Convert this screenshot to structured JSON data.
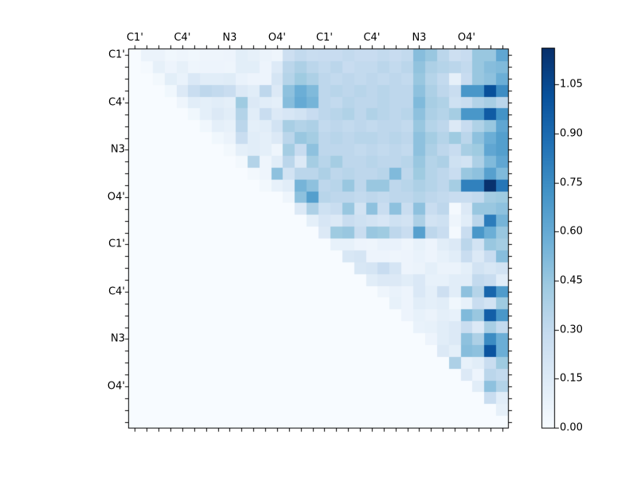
{
  "chart_data": {
    "type": "heatmap",
    "title": "",
    "description": "Upper-triangular 32x32 matrix heatmap with Blues colormap and vertical colorbar",
    "n_rows": 32,
    "n_cols": 32,
    "x_ticks": [
      {
        "pos": 0,
        "label": "C1'"
      },
      {
        "pos": 4,
        "label": "C4'"
      },
      {
        "pos": 8,
        "label": "N3"
      },
      {
        "pos": 12,
        "label": "O4'"
      },
      {
        "pos": 16,
        "label": "C1'"
      },
      {
        "pos": 20,
        "label": "C4'"
      },
      {
        "pos": 24,
        "label": "N3"
      },
      {
        "pos": 28,
        "label": "O4'"
      }
    ],
    "y_ticks": [
      {
        "pos": 0,
        "label": "C1'"
      },
      {
        "pos": 4,
        "label": "C4'"
      },
      {
        "pos": 8,
        "label": "N3"
      },
      {
        "pos": 12,
        "label": "O4'"
      },
      {
        "pos": 16,
        "label": "C1'"
      },
      {
        "pos": 20,
        "label": "C4'"
      },
      {
        "pos": 24,
        "label": "N3"
      },
      {
        "pos": 28,
        "label": "O4'"
      }
    ],
    "vmin": 0.0,
    "vmax": 1.16,
    "colormap_name": "Blues",
    "colormap": [
      {
        "t": 0.0,
        "color": "#f7fbff"
      },
      {
        "t": 0.125,
        "color": "#deebf7"
      },
      {
        "t": 0.25,
        "color": "#c6dbef"
      },
      {
        "t": 0.375,
        "color": "#9ecae1"
      },
      {
        "t": 0.5,
        "color": "#6baed6"
      },
      {
        "t": 0.625,
        "color": "#4292c6"
      },
      {
        "t": 0.75,
        "color": "#2171b5"
      },
      {
        "t": 0.875,
        "color": "#08519c"
      },
      {
        "t": 1.0,
        "color": "#08306b"
      }
    ],
    "colorbar": {
      "tick_values": [
        0.0,
        0.15,
        0.3,
        0.45,
        0.6,
        0.75,
        0.9,
        1.05
      ],
      "tick_labels": [
        "0.00",
        "0.15",
        "0.30",
        "0.45",
        "0.60",
        "0.75",
        "0.90",
        "1.05"
      ]
    },
    "matrix": [
      [
        0,
        0.07,
        0.07,
        0.04,
        0.05,
        0.04,
        0.05,
        0.05,
        0.06,
        0.12,
        0.1,
        0.07,
        0.05,
        0.25,
        0.3,
        0.27,
        0.28,
        0.28,
        0.3,
        0.28,
        0.28,
        0.3,
        0.28,
        0.3,
        0.5,
        0.45,
        0.33,
        0.25,
        0.28,
        0.45,
        0.45,
        0.62
      ],
      [
        0,
        0.02,
        0.1,
        0.06,
        0.1,
        0.05,
        0.06,
        0.06,
        0.05,
        0.12,
        0.12,
        0.06,
        0.15,
        0.33,
        0.38,
        0.33,
        0.3,
        0.33,
        0.28,
        0.3,
        0.3,
        0.33,
        0.3,
        0.33,
        0.47,
        0.38,
        0.35,
        0.33,
        0.3,
        0.45,
        0.5,
        0.52
      ],
      [
        0,
        0,
        0.03,
        0.12,
        0.08,
        0.17,
        0.13,
        0.13,
        0.14,
        0.08,
        0.06,
        0.06,
        0.2,
        0.35,
        0.43,
        0.38,
        0.32,
        0.3,
        0.32,
        0.3,
        0.32,
        0.3,
        0.32,
        0.3,
        0.45,
        0.35,
        0.3,
        0.1,
        0.28,
        0.45,
        0.48,
        0.58
      ],
      [
        0,
        0,
        0,
        0.04,
        0.16,
        0.27,
        0.32,
        0.3,
        0.27,
        0.16,
        0.13,
        0.32,
        0.16,
        0.48,
        0.58,
        0.52,
        0.32,
        0.34,
        0.32,
        0.34,
        0.32,
        0.34,
        0.32,
        0.32,
        0.48,
        0.38,
        0.32,
        0.27,
        0.7,
        0.7,
        1.02,
        0.75
      ],
      [
        0,
        0,
        0,
        0,
        0.05,
        0.13,
        0.11,
        0.13,
        0.11,
        0.43,
        0.16,
        0.13,
        0.11,
        0.5,
        0.6,
        0.55,
        0.32,
        0.3,
        0.34,
        0.32,
        0.32,
        0.34,
        0.32,
        0.32,
        0.52,
        0.4,
        0.37,
        0.24,
        0.27,
        0.36,
        0.4,
        0.33
      ],
      [
        0,
        0,
        0,
        0,
        0,
        0.04,
        0.11,
        0.16,
        0.13,
        0.36,
        0.13,
        0.27,
        0.16,
        0.19,
        0.22,
        0.28,
        0.32,
        0.34,
        0.37,
        0.32,
        0.37,
        0.34,
        0.32,
        0.34,
        0.48,
        0.38,
        0.35,
        0.41,
        0.7,
        0.7,
        0.97,
        0.72
      ],
      [
        0,
        0,
        0,
        0,
        0,
        0,
        0.04,
        0.11,
        0.09,
        0.33,
        0.11,
        0.13,
        0.22,
        0.4,
        0.36,
        0.38,
        0.3,
        0.32,
        0.3,
        0.32,
        0.3,
        0.32,
        0.32,
        0.3,
        0.45,
        0.35,
        0.32,
        0.16,
        0.28,
        0.37,
        0.45,
        0.62
      ],
      [
        0,
        0,
        0,
        0,
        0,
        0,
        0,
        0.04,
        0.07,
        0.27,
        0.13,
        0.11,
        0.16,
        0.33,
        0.45,
        0.41,
        0.32,
        0.34,
        0.32,
        0.34,
        0.34,
        0.32,
        0.34,
        0.32,
        0.48,
        0.41,
        0.35,
        0.43,
        0.33,
        0.48,
        0.58,
        0.66
      ],
      [
        0,
        0,
        0,
        0,
        0,
        0,
        0,
        0,
        0.03,
        0.11,
        0.13,
        0.11,
        0.05,
        0.41,
        0.28,
        0.48,
        0.32,
        0.32,
        0.32,
        0.3,
        0.32,
        0.3,
        0.32,
        0.3,
        0.48,
        0.38,
        0.32,
        0.28,
        0.4,
        0.43,
        0.62,
        0.66
      ],
      [
        0,
        0,
        0,
        0,
        0,
        0,
        0,
        0,
        0,
        0.03,
        0.36,
        0.05,
        0.13,
        0.33,
        0.16,
        0.41,
        0.34,
        0.41,
        0.32,
        0.32,
        0.34,
        0.32,
        0.32,
        0.34,
        0.45,
        0.35,
        0.38,
        0.24,
        0.22,
        0.38,
        0.52,
        0.62
      ],
      [
        0,
        0,
        0,
        0,
        0,
        0,
        0,
        0,
        0,
        0,
        0.03,
        0.05,
        0.48,
        0.22,
        0.33,
        0.33,
        0.38,
        0.32,
        0.34,
        0.32,
        0.32,
        0.34,
        0.52,
        0.32,
        0.43,
        0.35,
        0.32,
        0.27,
        0.45,
        0.48,
        0.65,
        0.52
      ],
      [
        0,
        0,
        0,
        0,
        0,
        0,
        0,
        0,
        0,
        0,
        0,
        0.03,
        0.09,
        0.13,
        0.55,
        0.48,
        0.32,
        0.34,
        0.45,
        0.32,
        0.45,
        0.45,
        0.32,
        0.34,
        0.38,
        0.35,
        0.32,
        0.41,
        0.8,
        0.8,
        1.15,
        0.85
      ],
      [
        0,
        0,
        0,
        0,
        0,
        0,
        0,
        0,
        0,
        0,
        0,
        0,
        0,
        0.05,
        0.48,
        0.66,
        0.34,
        0.32,
        0.32,
        0.3,
        0.32,
        0.3,
        0.32,
        0.32,
        0.35,
        0.32,
        0.3,
        0.27,
        0.27,
        0.3,
        0.41,
        0.43
      ],
      [
        0,
        0,
        0,
        0,
        0,
        0,
        0,
        0,
        0,
        0,
        0,
        0,
        0,
        0,
        0.16,
        0.38,
        0.24,
        0.27,
        0.45,
        0.22,
        0.48,
        0.27,
        0.48,
        0.27,
        0.48,
        0.27,
        0.32,
        0.02,
        0.16,
        0.45,
        0.45,
        0.48
      ],
      [
        0,
        0,
        0,
        0,
        0,
        0,
        0,
        0,
        0,
        0,
        0,
        0,
        0,
        0,
        0,
        0.11,
        0.19,
        0.16,
        0.27,
        0.24,
        0.22,
        0.19,
        0.24,
        0.22,
        0.38,
        0.22,
        0.24,
        0.05,
        0.13,
        0.33,
        0.82,
        0.55
      ],
      [
        0,
        0,
        0,
        0,
        0,
        0,
        0,
        0,
        0,
        0,
        0,
        0,
        0,
        0,
        0,
        0,
        0.16,
        0.43,
        0.45,
        0.27,
        0.45,
        0.43,
        0.32,
        0.27,
        0.65,
        0.32,
        0.27,
        0.02,
        0.27,
        0.7,
        0.58,
        0.45
      ],
      [
        0,
        0,
        0,
        0,
        0,
        0,
        0,
        0,
        0,
        0,
        0,
        0,
        0,
        0,
        0,
        0,
        0,
        0.09,
        0.09,
        0.06,
        0.05,
        0.08,
        0.08,
        0.05,
        0.09,
        0.06,
        0.13,
        0.16,
        0.33,
        0.22,
        0.45,
        0.41
      ],
      [
        0,
        0,
        0,
        0,
        0,
        0,
        0,
        0,
        0,
        0,
        0,
        0,
        0,
        0,
        0,
        0,
        0,
        0,
        0.18,
        0.2,
        0.06,
        0.06,
        0.05,
        0.06,
        0.08,
        0.06,
        0.09,
        0.13,
        0.27,
        0.16,
        0.28,
        0.5
      ],
      [
        0,
        0,
        0,
        0,
        0,
        0,
        0,
        0,
        0,
        0,
        0,
        0,
        0,
        0,
        0,
        0,
        0,
        0,
        0,
        0.18,
        0.2,
        0.28,
        0.2,
        0.06,
        0.07,
        0.11,
        0.07,
        0.07,
        0.11,
        0.22,
        0.18,
        0.22
      ],
      [
        0,
        0,
        0,
        0,
        0,
        0,
        0,
        0,
        0,
        0,
        0,
        0,
        0,
        0,
        0,
        0,
        0,
        0,
        0,
        0,
        0.13,
        0.16,
        0.16,
        0.13,
        0.17,
        0.09,
        0.09,
        0.13,
        0.13,
        0.3,
        0.27,
        0.13
      ],
      [
        0,
        0,
        0,
        0,
        0,
        0,
        0,
        0,
        0,
        0,
        0,
        0,
        0,
        0,
        0,
        0,
        0,
        0,
        0,
        0,
        0,
        0.05,
        0.08,
        0.06,
        0.17,
        0.11,
        0.25,
        0.13,
        0.48,
        0.35,
        0.92,
        0.68
      ],
      [
        0,
        0,
        0,
        0,
        0,
        0,
        0,
        0,
        0,
        0,
        0,
        0,
        0,
        0,
        0,
        0,
        0,
        0,
        0,
        0,
        0,
        0,
        0.09,
        0.06,
        0.13,
        0.11,
        0.13,
        0.04,
        0.09,
        0.27,
        0.22,
        0.43
      ],
      [
        0,
        0,
        0,
        0,
        0,
        0,
        0,
        0,
        0,
        0,
        0,
        0,
        0,
        0,
        0,
        0,
        0,
        0,
        0,
        0,
        0,
        0,
        0,
        0.06,
        0.09,
        0.07,
        0.11,
        0.09,
        0.52,
        0.45,
        0.95,
        0.7
      ],
      [
        0,
        0,
        0,
        0,
        0,
        0,
        0,
        0,
        0,
        0,
        0,
        0,
        0,
        0,
        0,
        0,
        0,
        0,
        0,
        0,
        0,
        0,
        0,
        0,
        0.08,
        0.09,
        0.13,
        0.16,
        0.27,
        0.16,
        0.4,
        0.3
      ],
      [
        0,
        0,
        0,
        0,
        0,
        0,
        0,
        0,
        0,
        0,
        0,
        0,
        0,
        0,
        0,
        0,
        0,
        0,
        0,
        0,
        0,
        0,
        0,
        0,
        0,
        0.06,
        0.13,
        0.16,
        0.48,
        0.38,
        0.75,
        0.58
      ],
      [
        0,
        0,
        0,
        0,
        0,
        0,
        0,
        0,
        0,
        0,
        0,
        0,
        0,
        0,
        0,
        0,
        0,
        0,
        0,
        0,
        0,
        0,
        0,
        0,
        0,
        0,
        0.16,
        0.11,
        0.5,
        0.48,
        1.0,
        0.58
      ],
      [
        0,
        0,
        0,
        0,
        0,
        0,
        0,
        0,
        0,
        0,
        0,
        0,
        0,
        0,
        0,
        0,
        0,
        0,
        0,
        0,
        0,
        0,
        0,
        0,
        0,
        0,
        0,
        0.38,
        0.09,
        0.13,
        0.27,
        0.43
      ],
      [
        0,
        0,
        0,
        0,
        0,
        0,
        0,
        0,
        0,
        0,
        0,
        0,
        0,
        0,
        0,
        0,
        0,
        0,
        0,
        0,
        0,
        0,
        0,
        0,
        0,
        0,
        0,
        0,
        0.16,
        0.06,
        0.33,
        0.3
      ],
      [
        0,
        0,
        0,
        0,
        0,
        0,
        0,
        0,
        0,
        0,
        0,
        0,
        0,
        0,
        0,
        0,
        0,
        0,
        0,
        0,
        0,
        0,
        0,
        0,
        0,
        0,
        0,
        0,
        0,
        0.13,
        0.48,
        0.36
      ],
      [
        0,
        0,
        0,
        0,
        0,
        0,
        0,
        0,
        0,
        0,
        0,
        0,
        0,
        0,
        0,
        0,
        0,
        0,
        0,
        0,
        0,
        0,
        0,
        0,
        0,
        0,
        0,
        0,
        0,
        0,
        0.27,
        0.13
      ],
      [
        0,
        0,
        0,
        0,
        0,
        0,
        0,
        0,
        0,
        0,
        0,
        0,
        0,
        0,
        0,
        0,
        0,
        0,
        0,
        0,
        0,
        0,
        0,
        0,
        0,
        0,
        0,
        0,
        0,
        0,
        0,
        0.1
      ],
      [
        0,
        0,
        0,
        0,
        0,
        0,
        0,
        0,
        0,
        0,
        0,
        0,
        0,
        0,
        0,
        0,
        0,
        0,
        0,
        0,
        0,
        0,
        0,
        0,
        0,
        0,
        0,
        0,
        0,
        0,
        0,
        0
      ]
    ]
  }
}
